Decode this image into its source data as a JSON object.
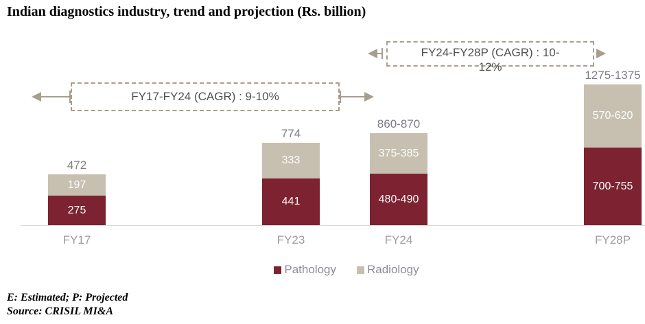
{
  "title": "Indian diagnostics industry, trend and projection (Rs. billion)",
  "cagr_annotations": {
    "box1": {
      "label": "FY17-FY24 (CAGR) : 9-10%"
    },
    "box2": {
      "label": "FY24-FY28P (CAGR) : 10-12%",
      "line1": "FY24-FY28P (CAGR) : 10-",
      "line2": "12%"
    }
  },
  "legend": {
    "items": [
      {
        "label": "Pathology",
        "color": "#7C2230"
      },
      {
        "label": "Radiology",
        "color": "#C7C0B1"
      }
    ]
  },
  "footnotes": {
    "line1": "E: Estimated; P: Projected",
    "line2": "Source: CRISIL MI&A"
  },
  "colors": {
    "pathology": "#7C2230",
    "radiology": "#C7C0B1",
    "annotation": "#A89E8E",
    "axis_line": "#D9D9D9"
  },
  "chart_data": {
    "type": "bar",
    "subtype": "stacked",
    "unit": "Rs. billion",
    "title": "Indian diagnostics industry, trend and projection (Rs. billion)",
    "categories": [
      "FY17",
      "FY23",
      "FY24",
      "FY28P"
    ],
    "series": [
      {
        "name": "Pathology",
        "color": "#7C2230",
        "values": [
          275,
          441,
          485,
          727.5
        ],
        "value_labels": [
          "275",
          "441",
          "480-490",
          "700-755"
        ]
      },
      {
        "name": "Radiology",
        "color": "#C7C0B1",
        "values": [
          197,
          333,
          380,
          595
        ],
        "value_labels": [
          "197",
          "333",
          "375-385",
          "570-620"
        ]
      }
    ],
    "totals": [
      472,
      774,
      865,
      1325
    ],
    "total_labels": [
      "472",
      "774",
      "860-870",
      "1275-1375"
    ],
    "annotations": [
      {
        "text": "FY17-FY24 (CAGR) : 9-10%",
        "span": [
          "FY17",
          "FY24"
        ]
      },
      {
        "text": "FY24-FY28P (CAGR) : 10-12%",
        "span": [
          "FY24",
          "FY28P"
        ]
      }
    ],
    "legend_position": "bottom",
    "grid": false,
    "axis": "baseline-only"
  }
}
